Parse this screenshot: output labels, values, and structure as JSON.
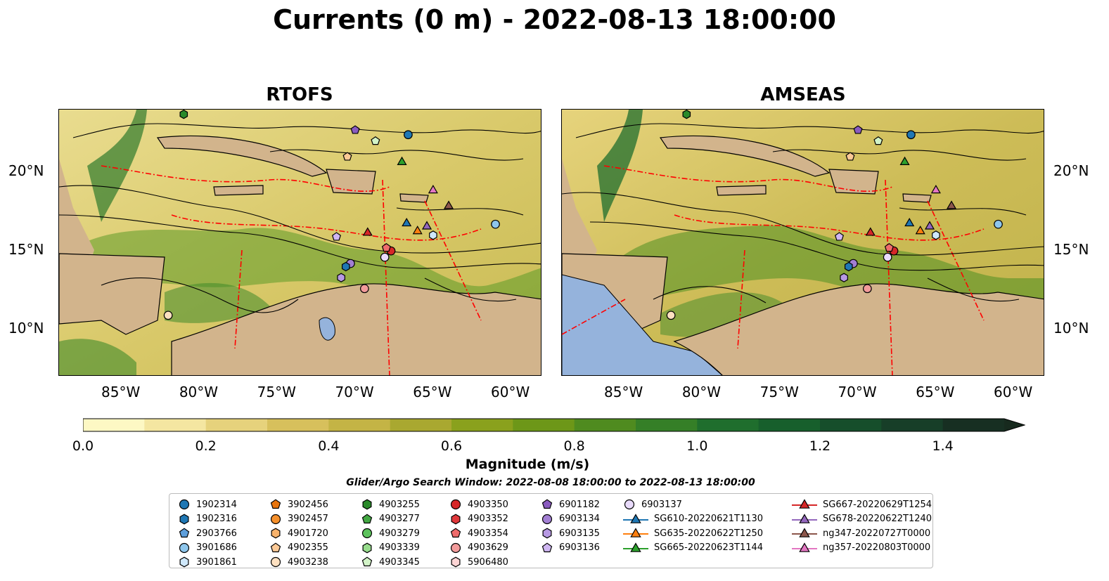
{
  "title": "Currents (0 m) - 2022-08-13 18:00:00",
  "panels": [
    {
      "name": "RTOFS"
    },
    {
      "name": "AMSEAS"
    }
  ],
  "lat_labels": [
    "20°N",
    "15°N",
    "10°N"
  ],
  "lon_labels": [
    "85°W",
    "80°W",
    "75°W",
    "70°W",
    "65°W",
    "60°W"
  ],
  "colorbar": {
    "label": "Magnitude (m/s)",
    "ticks": [
      "0.0",
      "0.2",
      "0.4",
      "0.6",
      "0.8",
      "1.0",
      "1.2",
      "1.4"
    ],
    "range": [
      0,
      1.5
    ],
    "extend": "max",
    "colors": [
      "#fdf8c4",
      "#f4e6a1",
      "#e6d27c",
      "#d7c05c",
      "#c4b445",
      "#a9a830",
      "#8aa11d",
      "#6d9718",
      "#4f8b1f",
      "#357f27",
      "#1f6e2d",
      "#175f2c",
      "#164e2b",
      "#173e28",
      "#172f22"
    ],
    "extend_color": "#172a1e"
  },
  "search_window": "Glider/Argo Search Window: 2022-08-08 18:00:00 to 2022-08-13 18:00:00",
  "colors": {
    "land": "#d2b48c",
    "water_deep": "#95b3dc",
    "eez": "#ff0000",
    "bathy": "#666666"
  },
  "legend": [
    {
      "label": "1902314",
      "marker": "circle",
      "color": "#1f77b4"
    },
    {
      "label": "1902316",
      "marker": "hexagon",
      "color": "#1f77b4"
    },
    {
      "label": "2903766",
      "marker": "pentagon",
      "color": "#5e9fdb"
    },
    {
      "label": "3901686",
      "marker": "circle",
      "color": "#8ec6ec"
    },
    {
      "label": "3901861",
      "marker": "hexagon",
      "color": "#cfe8fb"
    },
    {
      "label": "3902456",
      "marker": "pentagon",
      "color": "#e8750e"
    },
    {
      "label": "3902457",
      "marker": "circle",
      "color": "#f5902c"
    },
    {
      "label": "4901720",
      "marker": "hexagon",
      "color": "#f7b26b"
    },
    {
      "label": "4902355",
      "marker": "pentagon",
      "color": "#fbc996"
    },
    {
      "label": "4903238",
      "marker": "circle",
      "color": "#fde0c0"
    },
    {
      "label": "4903255",
      "marker": "hexagon",
      "color": "#2a8a2a"
    },
    {
      "label": "4903277",
      "marker": "pentagon",
      "color": "#43a843"
    },
    {
      "label": "4903279",
      "marker": "circle",
      "color": "#5cc25c"
    },
    {
      "label": "4903339",
      "marker": "hexagon",
      "color": "#97dc8c"
    },
    {
      "label": "4903345",
      "marker": "pentagon",
      "color": "#d2f3c7"
    },
    {
      "label": "4903350",
      "marker": "circle",
      "color": "#d62728"
    },
    {
      "label": "4903352",
      "marker": "hexagon",
      "color": "#e0383b"
    },
    {
      "label": "4903354",
      "marker": "pentagon",
      "color": "#ee6b6b"
    },
    {
      "label": "4903629",
      "marker": "circle",
      "color": "#f29b9b"
    },
    {
      "label": "5906480",
      "marker": "hexagon",
      "color": "#fcd4d4"
    },
    {
      "label": "6901182",
      "marker": "pentagon",
      "color": "#8a5bbf"
    },
    {
      "label": "6903134",
      "marker": "circle",
      "color": "#a27fd3"
    },
    {
      "label": "6903135",
      "marker": "hexagon",
      "color": "#b799e3"
    },
    {
      "label": "6903136",
      "marker": "pentagon",
      "color": "#cfb6f2"
    },
    {
      "label": "6903137",
      "marker": "circle",
      "color": "#e9dbfb"
    },
    {
      "label": "SG610-20220621T1130",
      "marker": "triangle",
      "color": "#1f77b4"
    },
    {
      "label": "SG635-20220622T1250",
      "marker": "triangle",
      "color": "#ff7f0e"
    },
    {
      "label": "SG665-20220623T1144",
      "marker": "triangle",
      "color": "#2ca02c"
    },
    {
      "label": "SG667-20220629T1254",
      "marker": "triangle",
      "color": "#d62728"
    },
    {
      "label": "SG678-20220622T1240",
      "marker": "triangle",
      "color": "#9467bd"
    },
    {
      "label": "ng347-20220727T0000",
      "marker": "triangle",
      "color": "#8c564b"
    },
    {
      "label": "ng357-20220803T0000",
      "marker": "triangle",
      "color": "#e377c2"
    }
  ],
  "observations": [
    {
      "id": "1902314",
      "lon": -66.6,
      "lat": 22.4
    },
    {
      "id": "6901182",
      "lon": -70.0,
      "lat": 22.7
    },
    {
      "id": "4903345",
      "lon": -68.7,
      "lat": 22.0
    },
    {
      "id": "4902355",
      "lon": -70.5,
      "lat": 21.0
    },
    {
      "id": "4903255",
      "lon": -81.0,
      "lat": 23.7
    },
    {
      "id": "SG665-20220623T1144",
      "lon": -67.0,
      "lat": 20.7
    },
    {
      "id": "ng357-20220803T0000",
      "lon": -65.0,
      "lat": 18.9
    },
    {
      "id": "ng347-20220727T0000",
      "lon": -64.0,
      "lat": 17.9
    },
    {
      "id": "SG610-20220621T1130",
      "lon": -66.7,
      "lat": 16.8
    },
    {
      "id": "SG635-20220622T1250",
      "lon": -66.0,
      "lat": 16.3
    },
    {
      "id": "SG678-20220622T1240",
      "lon": -65.4,
      "lat": 16.6
    },
    {
      "id": "3901861",
      "lon": -65.0,
      "lat": 16.0
    },
    {
      "id": "3901686",
      "lon": -61.0,
      "lat": 16.7
    },
    {
      "id": "SG667-20220629T1254",
      "lon": -69.2,
      "lat": 16.2
    },
    {
      "id": "6903136",
      "lon": -71.2,
      "lat": 15.9
    },
    {
      "id": "4903350",
      "lon": -67.7,
      "lat": 15.0
    },
    {
      "id": "4903354",
      "lon": -68.0,
      "lat": 15.2
    },
    {
      "id": "6903137",
      "lon": -68.1,
      "lat": 14.6
    },
    {
      "id": "6903134",
      "lon": -70.3,
      "lat": 14.2
    },
    {
      "id": "1902316",
      "lon": -70.6,
      "lat": 14.0
    },
    {
      "id": "6903135",
      "lon": -70.9,
      "lat": 13.3
    },
    {
      "id": "4903629",
      "lon": -69.4,
      "lat": 12.6
    },
    {
      "id": "4903238",
      "lon": -82.0,
      "lat": 10.9
    }
  ]
}
